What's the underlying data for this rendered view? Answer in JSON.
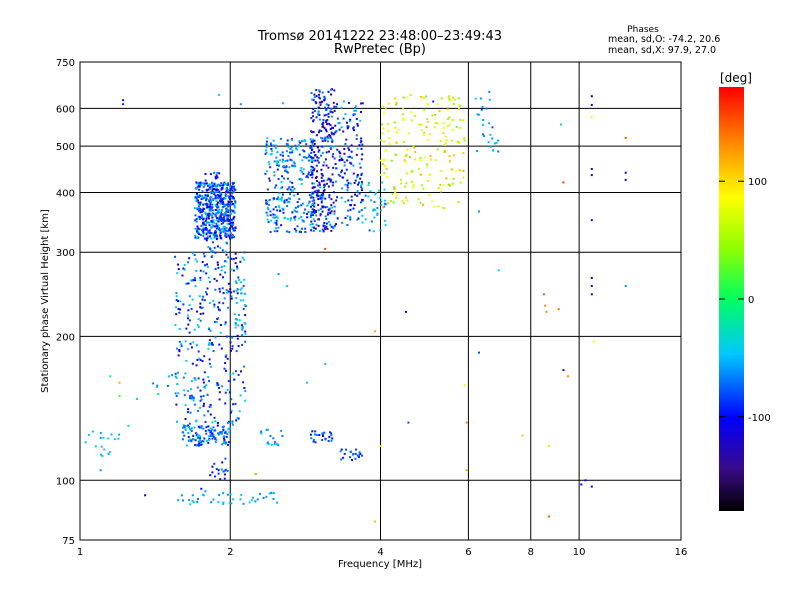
{
  "chart_data": {
    "type": "scatter",
    "title": "Tromsø 20141222 23:48:00–23:49:43",
    "subtitle": "RwPretec (Bp)",
    "xlabel": "Frequency [MHz]",
    "ylabel": "Stationary phase Virtual Height [km]",
    "x_scale": "log",
    "y_scale": "log",
    "xlim": [
      1,
      16
    ],
    "ylim": [
      75,
      750
    ],
    "x_ticks": [
      "1",
      "2",
      "4",
      "6",
      "8",
      "10",
      "16"
    ],
    "x_tick_values": [
      1,
      2,
      4,
      6,
      8,
      10,
      16
    ],
    "y_ticks": [
      "75",
      "100",
      "200",
      "300",
      "400",
      "500",
      "600",
      "750"
    ],
    "y_tick_values": [
      75,
      100,
      200,
      300,
      400,
      500,
      600,
      750
    ],
    "x_grid": [
      2,
      4,
      6,
      8,
      10
    ],
    "y_grid": [
      100,
      200,
      300,
      400,
      500,
      600
    ],
    "grid": true,
    "colorbar": {
      "label": "[deg]",
      "range": [
        -180,
        180
      ],
      "ticks": [
        "100",
        "0",
        "-100"
      ],
      "tick_values": [
        100,
        0,
        -100
      ]
    },
    "legend": {
      "title": "Phases",
      "lines": [
        "mean, sd,O: -74.2, 20.6",
        "mean, sd,X:  97.9, 27.0"
      ],
      "position": "top-right"
    },
    "clusters": [
      {
        "f": [
          1.7,
          2.05
        ],
        "h": [
          320,
          420
        ],
        "phase": [
          -120,
          -40
        ],
        "n": 480
      },
      {
        "f": [
          1.78,
          1.98
        ],
        "h": [
          300,
          440
        ],
        "phase": [
          -110,
          -50
        ],
        "n": 80
      },
      {
        "f": [
          2.35,
          2.95
        ],
        "h": [
          330,
          520
        ],
        "phase": [
          -100,
          -30
        ],
        "n": 280
      },
      {
        "f": [
          2.9,
          3.25
        ],
        "h": [
          330,
          660
        ],
        "phase": [
          -150,
          -50
        ],
        "n": 300
      },
      {
        "f": [
          3.25,
          3.7
        ],
        "h": [
          340,
          620
        ],
        "phase": [
          -130,
          -40
        ],
        "n": 150
      },
      {
        "f": [
          3.65,
          4.1
        ],
        "h": [
          330,
          420
        ],
        "phase": [
          -80,
          -20
        ],
        "n": 40
      },
      {
        "f": [
          4.0,
          5.9
        ],
        "h": [
          370,
          640
        ],
        "phase": [
          30,
          120
        ],
        "n": 190
      },
      {
        "f": [
          6.2,
          6.9
        ],
        "h": [
          470,
          650
        ],
        "phase": [
          -80,
          -40
        ],
        "n": 26
      },
      {
        "f": [
          1.55,
          2.15
        ],
        "h": [
          130,
          300
        ],
        "phase": [
          -120,
          -30
        ],
        "n": 330
      },
      {
        "f": [
          2.05,
          2.15
        ],
        "h": [
          200,
          290
        ],
        "phase": [
          -60,
          -40
        ],
        "n": 24
      },
      {
        "f": [
          1.6,
          2.0
        ],
        "h": [
          118,
          130
        ],
        "phase": [
          -100,
          -40
        ],
        "n": 120
      },
      {
        "f": [
          2.3,
          2.55
        ],
        "h": [
          118,
          128
        ],
        "phase": [
          -70,
          -40
        ],
        "n": 18
      },
      {
        "f": [
          2.9,
          3.25
        ],
        "h": [
          120,
          127
        ],
        "phase": [
          -110,
          -60
        ],
        "n": 24
      },
      {
        "f": [
          3.3,
          3.7
        ],
        "h": [
          110,
          116
        ],
        "phase": [
          -100,
          -60
        ],
        "n": 22
      },
      {
        "f": [
          1.02,
          1.2
        ],
        "h": [
          110,
          127
        ],
        "phase": [
          -60,
          -30
        ],
        "n": 18
      },
      {
        "f": [
          1.5,
          2.5
        ],
        "h": [
          89,
          95
        ],
        "phase": [
          -70,
          -40
        ],
        "n": 40
      },
      {
        "f": [
          1.82,
          1.98
        ],
        "h": [
          100,
          112
        ],
        "phase": [
          -110,
          -60
        ],
        "n": 18
      },
      {
        "f": [
          1.4,
          1.6
        ],
        "h": [
          150,
          170
        ],
        "phase": [
          -80,
          -40
        ],
        "n": 8
      }
    ],
    "points": [
      {
        "f": 1.22,
        "h": 624,
        "phase": -100
      },
      {
        "f": 1.22,
        "h": 612,
        "phase": -90
      },
      {
        "f": 1.9,
        "h": 640,
        "phase": -40
      },
      {
        "f": 2.1,
        "h": 612,
        "phase": -60
      },
      {
        "f": 2.55,
        "h": 615,
        "phase": -50
      },
      {
        "f": 4.3,
        "h": 611,
        "phase": 120
      },
      {
        "f": 4.6,
        "h": 640,
        "phase": 100
      },
      {
        "f": 5.1,
        "h": 620,
        "phase": -90
      },
      {
        "f": 6.3,
        "h": 365,
        "phase": -60
      },
      {
        "f": 6.9,
        "h": 275,
        "phase": -40
      },
      {
        "f": 8.5,
        "h": 245,
        "phase": 150
      },
      {
        "f": 8.55,
        "h": 232,
        "phase": 130
      },
      {
        "f": 8.6,
        "h": 225,
        "phase": 130
      },
      {
        "f": 9.1,
        "h": 228,
        "phase": 140
      },
      {
        "f": 9.2,
        "h": 555,
        "phase": -40
      },
      {
        "f": 9.3,
        "h": 420,
        "phase": 160
      },
      {
        "f": 9.3,
        "h": 170,
        "phase": -110
      },
      {
        "f": 9.5,
        "h": 165,
        "phase": 130
      },
      {
        "f": 10.6,
        "h": 636,
        "phase": -110
      },
      {
        "f": 10.6,
        "h": 610,
        "phase": -100
      },
      {
        "f": 10.6,
        "h": 575,
        "phase": 80
      },
      {
        "f": 10.6,
        "h": 448,
        "phase": -100
      },
      {
        "f": 10.6,
        "h": 435,
        "phase": -110
      },
      {
        "f": 10.6,
        "h": 350,
        "phase": -110
      },
      {
        "f": 10.6,
        "h": 265,
        "phase": -110
      },
      {
        "f": 10.6,
        "h": 255,
        "phase": -100
      },
      {
        "f": 10.6,
        "h": 245,
        "phase": -120
      },
      {
        "f": 10.7,
        "h": 195,
        "phase": 80
      },
      {
        "f": 12.4,
        "h": 520,
        "phase": 150
      },
      {
        "f": 12.4,
        "h": 440,
        "phase": -110
      },
      {
        "f": 12.4,
        "h": 425,
        "phase": -110
      },
      {
        "f": 12.4,
        "h": 255,
        "phase": -60
      },
      {
        "f": 10.1,
        "h": 98,
        "phase": -100
      },
      {
        "f": 10.3,
        "h": 100,
        "phase": -110
      },
      {
        "f": 10.6,
        "h": 97,
        "phase": -110
      },
      {
        "f": 8.7,
        "h": 84,
        "phase": 150
      },
      {
        "f": 7.7,
        "h": 124,
        "phase": 110
      },
      {
        "f": 8.7,
        "h": 118,
        "phase": 100
      },
      {
        "f": 5.95,
        "h": 132,
        "phase": 130
      },
      {
        "f": 5.95,
        "h": 105,
        "phase": 120
      },
      {
        "f": 4.55,
        "h": 132,
        "phase": -80
      },
      {
        "f": 4.5,
        "h": 225,
        "phase": -130
      },
      {
        "f": 6.3,
        "h": 185,
        "phase": -80
      },
      {
        "f": 5.9,
        "h": 158,
        "phase": 80
      },
      {
        "f": 3.9,
        "h": 82,
        "phase": 110
      },
      {
        "f": 3.9,
        "h": 205,
        "phase": 120
      },
      {
        "f": 4.0,
        "h": 118,
        "phase": 100
      },
      {
        "f": 2.25,
        "h": 103,
        "phase": 130
      },
      {
        "f": 1.1,
        "h": 105,
        "phase": -60
      },
      {
        "f": 1.35,
        "h": 93,
        "phase": -110
      },
      {
        "f": 1.6,
        "h": 93,
        "phase": -60
      },
      {
        "f": 1.75,
        "h": 96,
        "phase": -100
      },
      {
        "f": 1.2,
        "h": 150,
        "phase": 20
      },
      {
        "f": 1.15,
        "h": 165,
        "phase": 0
      },
      {
        "f": 1.2,
        "h": 160,
        "phase": 120
      },
      {
        "f": 1.3,
        "h": 148,
        "phase": -40
      },
      {
        "f": 1.25,
        "h": 130,
        "phase": -40
      },
      {
        "f": 2.5,
        "h": 270,
        "phase": -60
      },
      {
        "f": 2.6,
        "h": 255,
        "phase": -40
      },
      {
        "f": 2.85,
        "h": 160,
        "phase": -40
      },
      {
        "f": 3.1,
        "h": 175,
        "phase": -50
      },
      {
        "f": 3.1,
        "h": 305,
        "phase": 160
      }
    ]
  }
}
